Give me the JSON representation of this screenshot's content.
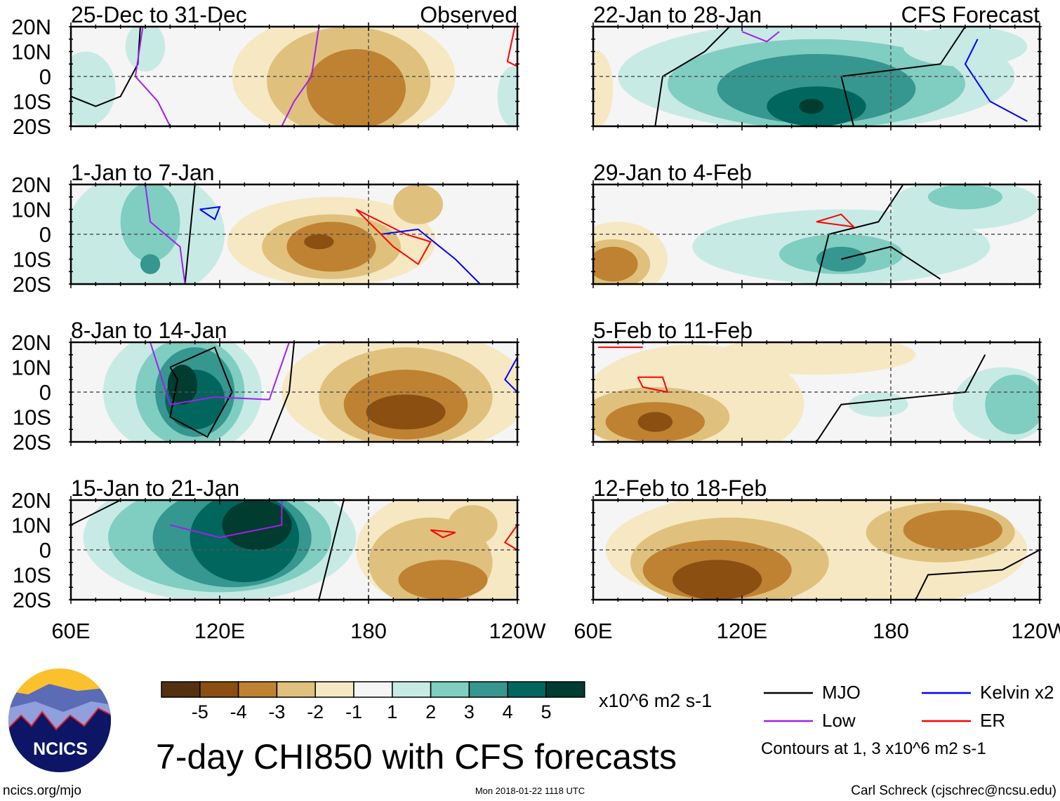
{
  "title": "7-day CHI850 with CFS forecasts",
  "units": "x10^6 m2 s-1",
  "footer": {
    "left": "ncics.org/mjo",
    "center": "Mon 2018-01-22 1118 UTC",
    "right": "Carl Schreck (cjschrec@ncsu.edu)"
  },
  "logo_text": "NCICS",
  "lat_labels": [
    "20N",
    "10N",
    "0",
    "10S",
    "20S"
  ],
  "lon_labels": [
    "60E",
    "120E",
    "180",
    "120W"
  ],
  "colorbar": {
    "colors": [
      "#54300e",
      "#8b4f12",
      "#bf8232",
      "#dfc17d",
      "#f6e8c3",
      "#f5f5f5",
      "#c7eae5",
      "#80cdc1",
      "#35978f",
      "#01665e",
      "#003c30"
    ],
    "labels": [
      "-5",
      "-4",
      "-3",
      "-2",
      "-1",
      "1",
      "2",
      "3",
      "4",
      "5"
    ]
  },
  "legend": {
    "items": [
      {
        "label": "MJO",
        "color": "#000000"
      },
      {
        "label": "Kelvin x2",
        "color": "#0000ff"
      },
      {
        "label": "Low",
        "color": "#a020f0"
      },
      {
        "label": "ER",
        "color": "#ff0000"
      }
    ],
    "note": "Contours at 1, 3 x10^6 m2 s-1"
  },
  "line_colors": {
    "mjo": "#000000",
    "kelvin": "#0000ff",
    "low": "#a020f0",
    "er": "#ff0000"
  },
  "panels": [
    {
      "title": "25-Dec to 31-Dec",
      "tag": "Observed",
      "blobs": [
        [
          1,
          66,
          -5,
          12,
          15
        ],
        [
          1,
          90,
          12,
          8,
          10
        ],
        [
          1,
          238,
          -8,
          6,
          12
        ],
        [
          -1,
          170,
          0,
          45,
          26
        ],
        [
          -2,
          172,
          -2,
          33,
          22
        ],
        [
          -3,
          175,
          -5,
          20,
          16
        ]
      ],
      "lines": [
        [
          "mjo",
          [
            [
              60,
              -8
            ],
            [
              70,
              -12
            ],
            [
              80,
              -8
            ],
            [
              87,
              5
            ],
            [
              88,
              20
            ]
          ]
        ],
        [
          "low",
          [
            [
              89,
              20
            ],
            [
              86,
              0
            ],
            [
              95,
              -10
            ],
            [
              100,
              -20
            ]
          ]
        ],
        [
          "low",
          [
            [
              160,
              20
            ],
            [
              157,
              0
            ],
            [
              150,
              -10
            ],
            [
              145,
              -20
            ]
          ]
        ],
        [
          "er",
          [
            [
              239,
              20
            ],
            [
              236,
              6
            ],
            [
              240,
              4
            ]
          ]
        ]
      ]
    },
    {
      "title": "1-Jan to 7-Jan",
      "tag": "",
      "blobs": [
        [
          1,
          90,
          0,
          32,
          26
        ],
        [
          2,
          92,
          5,
          12,
          16
        ],
        [
          3,
          92,
          -12,
          4,
          4
        ],
        [
          1,
          63,
          -15,
          8,
          8
        ],
        [
          -1,
          165,
          -3,
          42,
          18
        ],
        [
          -2,
          165,
          -5,
          28,
          13
        ],
        [
          -3,
          165,
          -5,
          18,
          10
        ],
        [
          -4,
          160,
          -3,
          6,
          3
        ],
        [
          -2,
          200,
          12,
          10,
          8
        ]
      ],
      "lines": [
        [
          "mjo",
          [
            [
              110,
              20
            ],
            [
              108,
              0
            ],
            [
              106,
              -20
            ]
          ]
        ],
        [
          "low",
          [
            [
              90,
              20
            ],
            [
              92,
              5
            ],
            [
              104,
              -5
            ],
            [
              106,
              -20
            ]
          ]
        ],
        [
          "er",
          [
            [
              175,
              10
            ],
            [
              195,
              0
            ],
            [
              205,
              -3
            ],
            [
              200,
              -12
            ],
            [
              190,
              -5
            ],
            [
              180,
              5
            ],
            [
              175,
              10
            ]
          ]
        ],
        [
          "kelvin",
          [
            [
              185,
              0
            ],
            [
              200,
              2
            ],
            [
              215,
              -10
            ],
            [
              225,
              -20
            ]
          ]
        ],
        [
          "kelvin",
          [
            [
              112,
              10
            ],
            [
              120,
              11
            ],
            [
              118,
              6
            ],
            [
              112,
              10
            ]
          ]
        ]
      ]
    },
    {
      "title": "8-Jan to 14-Jan",
      "tag": "",
      "blobs": [
        [
          1,
          105,
          0,
          32,
          26
        ],
        [
          2,
          108,
          0,
          22,
          22
        ],
        [
          3,
          110,
          0,
          16,
          18
        ],
        [
          4,
          110,
          -3,
          12,
          12
        ],
        [
          5,
          105,
          3,
          6,
          8
        ],
        [
          -1,
          195,
          0,
          50,
          25
        ],
        [
          -2,
          195,
          -2,
          35,
          20
        ],
        [
          -3,
          195,
          -5,
          25,
          14
        ],
        [
          -4,
          195,
          -8,
          16,
          7
        ]
      ],
      "lines": [
        [
          "mjo",
          [
            [
              100,
              10
            ],
            [
              118,
              18
            ],
            [
              125,
              0
            ],
            [
              115,
              -18
            ],
            [
              100,
              -10
            ],
            [
              103,
              5
            ],
            [
              100,
              10
            ]
          ]
        ],
        [
          "mjo",
          [
            [
              150,
              20
            ],
            [
              148,
              0
            ],
            [
              140,
              -20
            ]
          ]
        ],
        [
          "low",
          [
            [
              92,
              20
            ],
            [
              100,
              -5
            ],
            [
              118,
              -2
            ],
            [
              140,
              -3
            ],
            [
              148,
              20
            ]
          ]
        ],
        [
          "kelvin",
          [
            [
              240,
              14
            ],
            [
              235,
              5
            ],
            [
              240,
              0
            ]
          ]
        ]
      ]
    },
    {
      "title": "15-Jan to 21-Jan",
      "tag": "",
      "blobs": [
        [
          1,
          120,
          5,
          55,
          26
        ],
        [
          2,
          120,
          5,
          45,
          22
        ],
        [
          3,
          125,
          5,
          32,
          20
        ],
        [
          4,
          130,
          5,
          22,
          18
        ],
        [
          5,
          135,
          10,
          14,
          10
        ],
        [
          -1,
          215,
          0,
          40,
          25
        ],
        [
          -2,
          205,
          -5,
          25,
          18
        ],
        [
          -3,
          210,
          -12,
          18,
          8
        ],
        [
          -2,
          222,
          10,
          10,
          8
        ]
      ],
      "lines": [
        [
          "mjo",
          [
            [
              60,
              10
            ],
            [
              80,
              20
            ]
          ]
        ],
        [
          "mjo",
          [
            [
              170,
              20
            ],
            [
              165,
              0
            ],
            [
              160,
              -20
            ]
          ]
        ],
        [
          "low",
          [
            [
              100,
              10
            ],
            [
              120,
              5
            ],
            [
              145,
              10
            ],
            [
              145,
              20
            ]
          ]
        ],
        [
          "er",
          [
            [
              205,
              8
            ],
            [
              215,
              7
            ],
            [
              210,
              5
            ],
            [
              205,
              8
            ]
          ]
        ],
        [
          "er",
          [
            [
              240,
              10
            ],
            [
              235,
              3
            ],
            [
              240,
              0
            ]
          ]
        ]
      ]
    },
    {
      "title": "22-Jan to 28-Jan",
      "tag": "CFS Forecast",
      "blobs": [
        [
          -1,
          62,
          -5,
          6,
          15
        ],
        [
          1,
          150,
          0,
          80,
          22
        ],
        [
          2,
          150,
          -3,
          60,
          18
        ],
        [
          3,
          150,
          -5,
          40,
          14
        ],
        [
          4,
          150,
          -12,
          20,
          8
        ],
        [
          5,
          148,
          -12,
          5,
          3
        ],
        [
          1,
          210,
          12,
          25,
          8
        ]
      ],
      "lines": [
        [
          "mjo",
          [
            [
              85,
              -20
            ],
            [
              88,
              0
            ],
            [
              105,
              10
            ],
            [
              115,
              20
            ]
          ]
        ],
        [
          "mjo",
          [
            [
              165,
              -20
            ],
            [
              160,
              0
            ],
            [
              200,
              5
            ],
            [
              210,
              20
            ]
          ]
        ],
        [
          "low",
          [
            [
              120,
              18
            ],
            [
              130,
              14
            ],
            [
              135,
              18
            ]
          ]
        ],
        [
          "kelvin",
          [
            [
              215,
              15
            ],
            [
              210,
              5
            ],
            [
              220,
              -10
            ],
            [
              235,
              -18
            ]
          ]
        ]
      ]
    },
    {
      "title": "29-Jan to 4-Feb",
      "tag": "",
      "blobs": [
        [
          -1,
          70,
          -10,
          20,
          15
        ],
        [
          -2,
          68,
          -12,
          15,
          10
        ],
        [
          -3,
          68,
          -12,
          10,
          7
        ],
        [
          1,
          160,
          -5,
          60,
          15
        ],
        [
          2,
          160,
          -8,
          25,
          8
        ],
        [
          3,
          160,
          -10,
          10,
          5
        ],
        [
          1,
          210,
          12,
          30,
          10
        ],
        [
          2,
          210,
          15,
          15,
          5
        ]
      ],
      "lines": [
        [
          "mjo",
          [
            [
              150,
              -20
            ],
            [
              155,
              0
            ],
            [
              175,
              5
            ],
            [
              185,
              20
            ]
          ]
        ],
        [
          "mjo",
          [
            [
              160,
              -10
            ],
            [
              180,
              -5
            ],
            [
              200,
              -18
            ]
          ]
        ],
        [
          "er",
          [
            [
              150,
              5
            ],
            [
              160,
              8
            ],
            [
              165,
              3
            ],
            [
              150,
              5
            ]
          ]
        ]
      ]
    },
    {
      "title": "5-Feb to 11-Feb",
      "tag": "",
      "blobs": [
        [
          -1,
          100,
          -5,
          45,
          24
        ],
        [
          -2,
          85,
          -10,
          30,
          12
        ],
        [
          -3,
          85,
          -12,
          20,
          8
        ],
        [
          -4,
          85,
          -12,
          7,
          4
        ],
        [
          -1,
          150,
          15,
          40,
          8
        ],
        [
          1,
          225,
          -5,
          20,
          15
        ],
        [
          2,
          230,
          -5,
          12,
          12
        ],
        [
          1,
          175,
          -5,
          12,
          5
        ]
      ],
      "lines": [
        [
          "mjo",
          [
            [
              150,
              -20
            ],
            [
              160,
              -5
            ],
            [
              210,
              0
            ],
            [
              218,
              15
            ]
          ]
        ],
        [
          "er",
          [
            [
              78,
              6
            ],
            [
              88,
              6
            ],
            [
              90,
              0
            ],
            [
              80,
              2
            ],
            [
              78,
              6
            ]
          ]
        ],
        [
          "er",
          [
            [
              62,
              18
            ],
            [
              80,
              18
            ]
          ]
        ]
      ]
    },
    {
      "title": "12-Feb to 18-Feb",
      "tag": "",
      "blobs": [
        [
          -1,
          150,
          0,
          85,
          26
        ],
        [
          -2,
          115,
          -5,
          40,
          18
        ],
        [
          -3,
          110,
          -8,
          30,
          12
        ],
        [
          -4,
          110,
          -12,
          18,
          8
        ],
        [
          -2,
          200,
          7,
          30,
          12
        ],
        [
          -3,
          205,
          8,
          20,
          8
        ]
      ],
      "lines": [
        [
          "mjo",
          [
            [
              190,
              -20
            ],
            [
              195,
              -10
            ],
            [
              225,
              -8
            ],
            [
              240,
              0
            ]
          ]
        ]
      ]
    }
  ]
}
